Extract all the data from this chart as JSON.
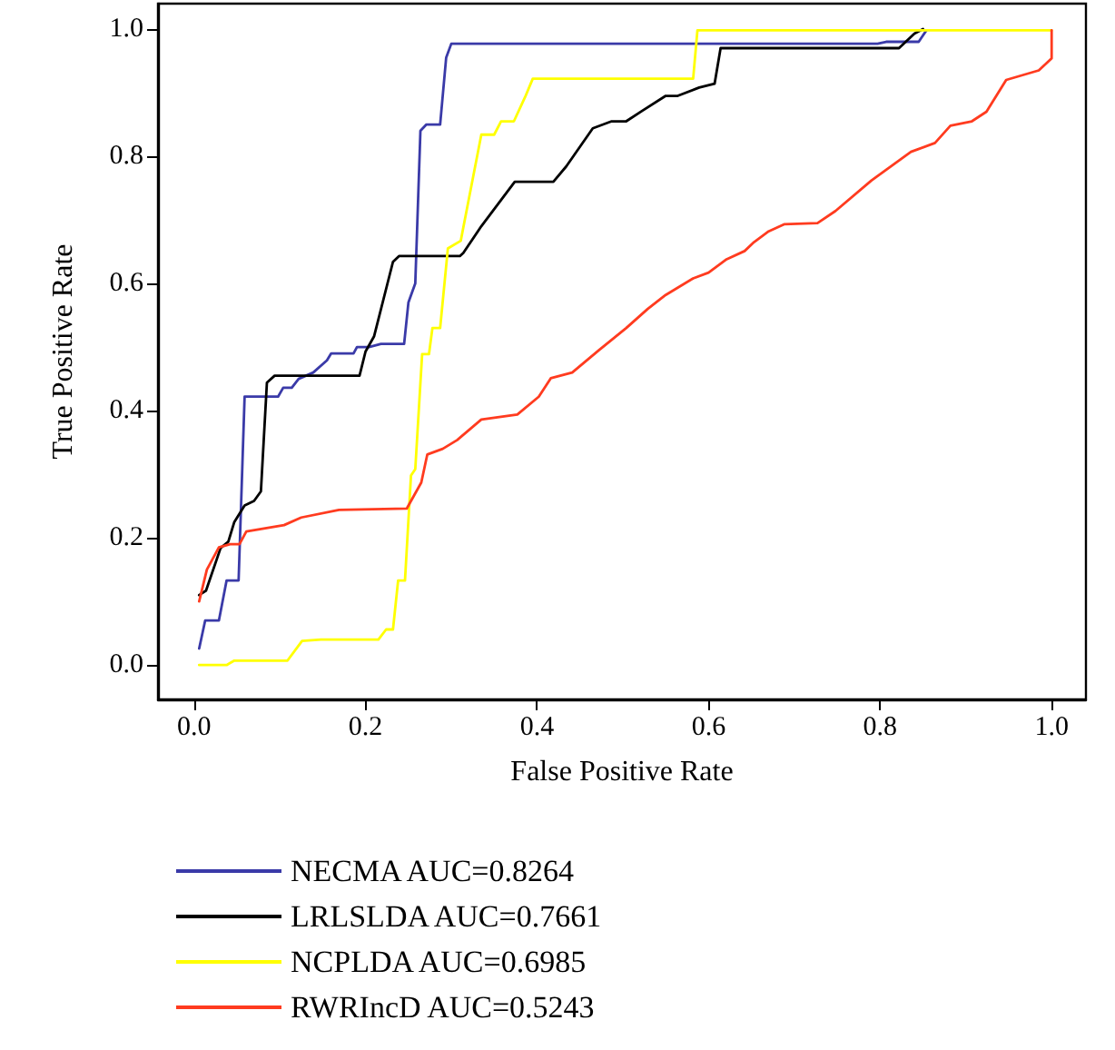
{
  "chart_data": {
    "type": "line",
    "xlabel": "False Positive Rate",
    "ylabel": "True Positive Rate",
    "xlim": [
      -0.042,
      1.04
    ],
    "ylim": [
      -0.054,
      1.04
    ],
    "xticks": [
      {
        "value": 0,
        "label": "0.0"
      },
      {
        "value": 0.2,
        "label": "0.2"
      },
      {
        "value": 0.4,
        "label": "0.4"
      },
      {
        "value": 0.6,
        "label": "0.6"
      },
      {
        "value": 0.8,
        "label": "0.8"
      },
      {
        "value": 1,
        "label": "1.0"
      }
    ],
    "yticks": [
      {
        "value": 0,
        "label": "0.0"
      },
      {
        "value": 0.2,
        "label": "0.2"
      },
      {
        "value": 0.4,
        "label": "0.4"
      },
      {
        "value": 0.6,
        "label": "0.6"
      },
      {
        "value": 0.8,
        "label": "0.8"
      },
      {
        "value": 1,
        "label": "1.0"
      }
    ],
    "grid": false,
    "legend": "bottom left",
    "marker": "none",
    "line_style": "solid",
    "series": [
      {
        "name": "NECMA AUC=0.8264",
        "color": "#3a3aa8",
        "x": [
          0.006,
          0.013,
          0.029,
          0.038,
          0.052,
          0.059,
          0.098,
          0.104,
          0.114,
          0.122,
          0.139,
          0.155,
          0.16,
          0.186,
          0.19,
          0.204,
          0.218,
          0.245,
          0.25,
          0.258,
          0.264,
          0.271,
          0.287,
          0.294,
          0.3,
          0.797,
          0.807,
          0.845,
          0.854
        ],
        "values": [
          0.026,
          0.07,
          0.07,
          0.133,
          0.133,
          0.422,
          0.422,
          0.436,
          0.436,
          0.45,
          0.46,
          0.479,
          0.49,
          0.49,
          0.5,
          0.5,
          0.505,
          0.505,
          0.57,
          0.6,
          0.84,
          0.85,
          0.85,
          0.955,
          0.977,
          0.977,
          0.98,
          0.98,
          0.998
        ]
      },
      {
        "name": "LRLSLDA AUC=0.7661",
        "color": "#000000",
        "x": [
          0.006,
          0.014,
          0.031,
          0.04,
          0.047,
          0.059,
          0.07,
          0.078,
          0.085,
          0.094,
          0.193,
          0.2,
          0.21,
          0.232,
          0.239,
          0.31,
          0.314,
          0.335,
          0.374,
          0.419,
          0.434,
          0.465,
          0.487,
          0.504,
          0.522,
          0.55,
          0.564,
          0.589,
          0.607,
          0.614,
          0.822,
          0.84,
          0.85
        ],
        "values": [
          0.11,
          0.117,
          0.184,
          0.194,
          0.225,
          0.251,
          0.258,
          0.273,
          0.444,
          0.455,
          0.455,
          0.493,
          0.517,
          0.634,
          0.643,
          0.643,
          0.648,
          0.69,
          0.76,
          0.76,
          0.784,
          0.844,
          0.855,
          0.855,
          0.871,
          0.895,
          0.895,
          0.908,
          0.914,
          0.97,
          0.97,
          0.993,
          1.0
        ]
      },
      {
        "name": "NCPLDA AUC=0.6985",
        "color": "#ffff00",
        "x": [
          0.006,
          0.038,
          0.047,
          0.109,
          0.126,
          0.148,
          0.215,
          0.224,
          0.232,
          0.238,
          0.246,
          0.253,
          0.258,
          0.266,
          0.274,
          0.278,
          0.287,
          0.296,
          0.311,
          0.335,
          0.35,
          0.358,
          0.373,
          0.386,
          0.395,
          0.582,
          0.587,
          1.0
        ],
        "values": [
          0.0,
          0.0,
          0.007,
          0.007,
          0.038,
          0.04,
          0.04,
          0.056,
          0.056,
          0.133,
          0.133,
          0.298,
          0.308,
          0.489,
          0.489,
          0.53,
          0.53,
          0.655,
          0.667,
          0.834,
          0.834,
          0.855,
          0.855,
          0.893,
          0.922,
          0.922,
          0.998,
          0.998
        ]
      },
      {
        "name": "RWRIncD AUC=0.5243",
        "color": "#ff3b1f",
        "x": [
          0.006,
          0.015,
          0.029,
          0.042,
          0.053,
          0.061,
          0.105,
          0.125,
          0.169,
          0.248,
          0.265,
          0.272,
          0.29,
          0.307,
          0.335,
          0.377,
          0.402,
          0.416,
          0.441,
          0.472,
          0.504,
          0.529,
          0.55,
          0.582,
          0.6,
          0.621,
          0.642,
          0.653,
          0.67,
          0.688,
          0.727,
          0.748,
          0.79,
          0.836,
          0.864,
          0.882,
          0.907,
          0.924,
          0.947,
          0.985,
          1.0,
          1.0
        ],
        "values": [
          0.1,
          0.15,
          0.185,
          0.19,
          0.19,
          0.21,
          0.22,
          0.232,
          0.244,
          0.246,
          0.287,
          0.331,
          0.34,
          0.354,
          0.386,
          0.394,
          0.422,
          0.451,
          0.46,
          0.495,
          0.53,
          0.56,
          0.582,
          0.608,
          0.617,
          0.638,
          0.651,
          0.665,
          0.682,
          0.693,
          0.695,
          0.714,
          0.762,
          0.807,
          0.821,
          0.848,
          0.855,
          0.87,
          0.92,
          0.935,
          0.954,
          0.998
        ]
      }
    ]
  }
}
